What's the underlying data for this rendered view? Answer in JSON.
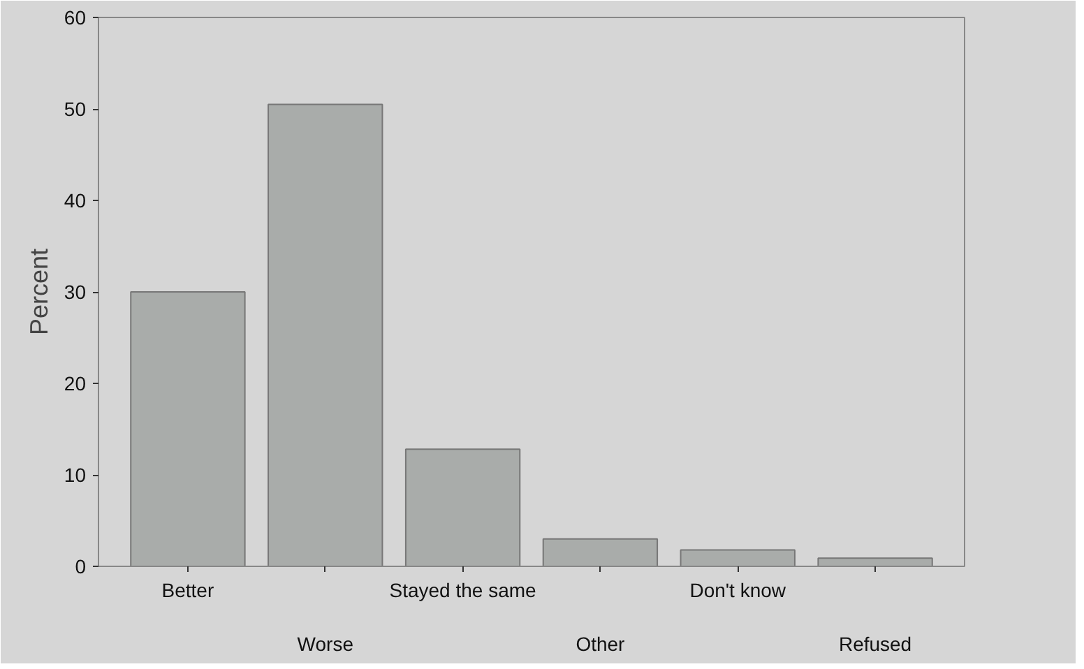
{
  "chart_data": {
    "type": "bar",
    "ylabel": "Percent",
    "categories": [
      "Better",
      "Worse",
      "Stayed the same",
      "Other",
      "Don't know",
      "Refused"
    ],
    "values": [
      30,
      50.5,
      12.8,
      3.0,
      1.8,
      0.9
    ],
    "color": "#a9acaa",
    "ylim": [
      0,
      60
    ],
    "yticks": [
      0,
      10,
      20,
      30,
      40,
      50,
      60
    ],
    "grid": false
  }
}
